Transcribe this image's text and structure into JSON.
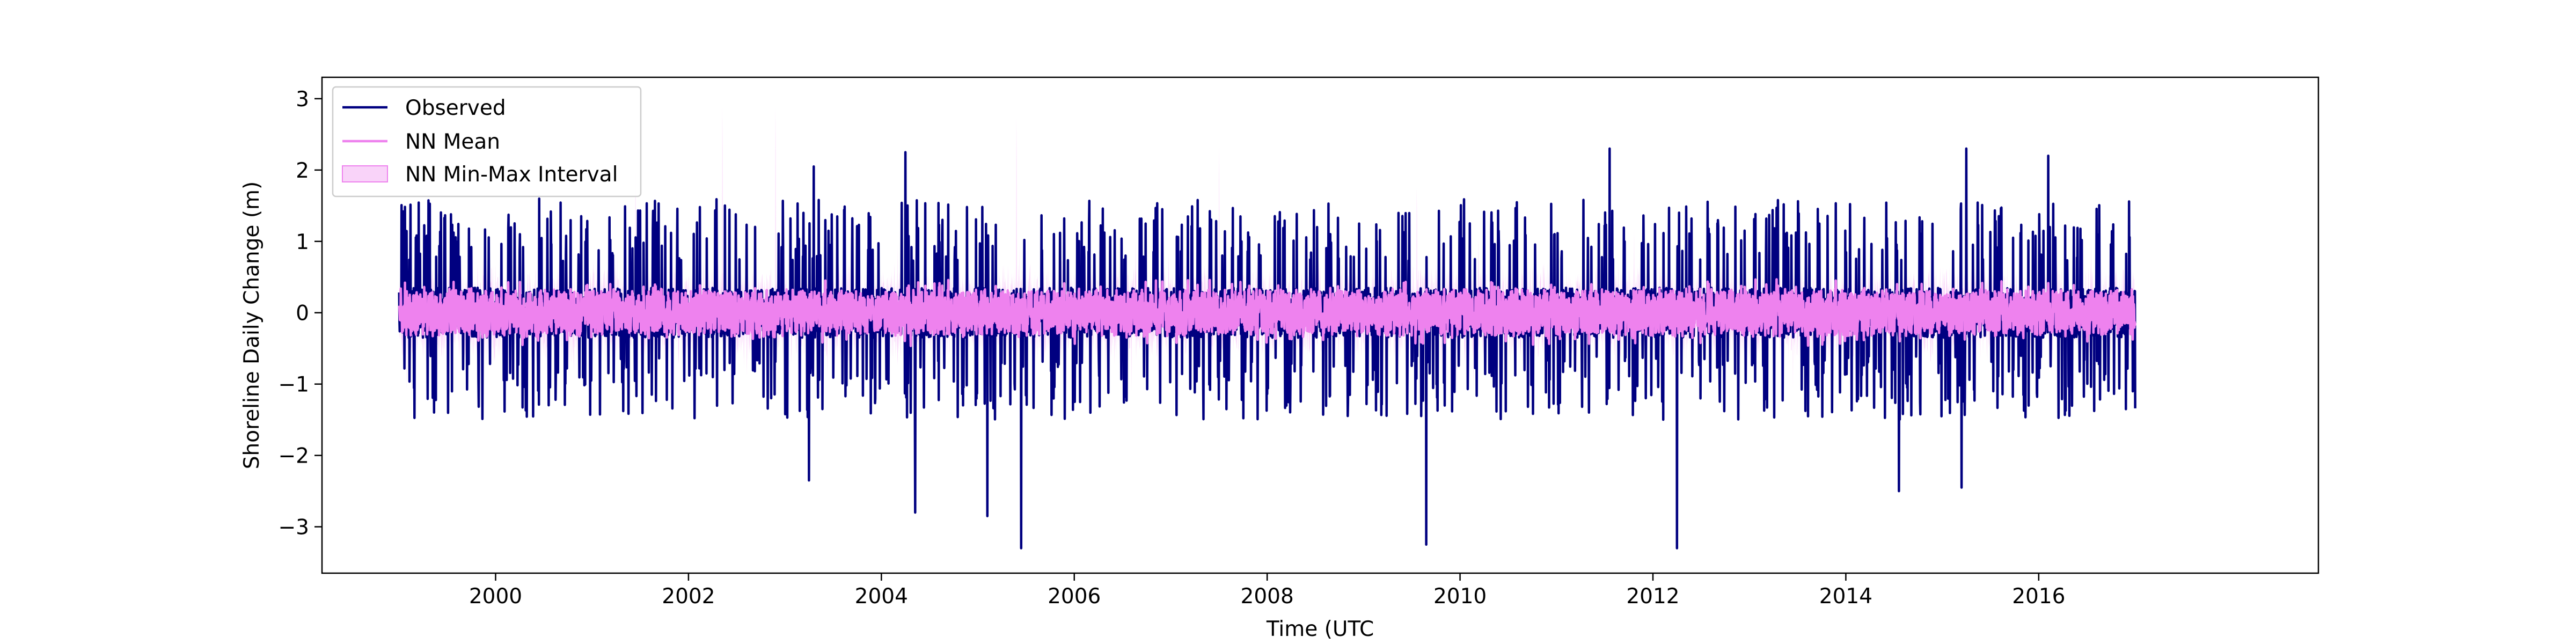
{
  "chart_data": {
    "type": "line",
    "title": "",
    "xlabel": "Time (UTC",
    "ylabel": "Shoreline Daily Change (m)",
    "xlim": [
      1998.2,
      2018.9
    ],
    "ylim": [
      -3.65,
      3.3
    ],
    "xticks": [
      2000,
      2002,
      2004,
      2006,
      2008,
      2010,
      2012,
      2014,
      2016
    ],
    "xtick_labels": [
      "2000",
      "2002",
      "2004",
      "2006",
      "2008",
      "2010",
      "2012",
      "2014",
      "2016"
    ],
    "yticks": [
      3,
      2,
      1,
      0,
      -1,
      -2,
      -3
    ],
    "ytick_labels": [
      "3",
      "2",
      "1",
      "0",
      "−1",
      "−2",
      "−3"
    ],
    "grid": false,
    "legend_position": "top-left",
    "date_range": [
      "1999-01-01",
      "2016-12-31"
    ],
    "series": [
      {
        "name": "Observed",
        "kind": "line",
        "color": "#000080"
      },
      {
        "name": "NN Mean",
        "kind": "line",
        "color": "#ee82ee"
      },
      {
        "name": "NN Min-Max Interval",
        "kind": "band",
        "color": "#ee82ee"
      }
    ],
    "notable_points": [
      {
        "x": 2012.25,
        "y": -3.3,
        "series": "Observed"
      },
      {
        "x": 2005.45,
        "y": -3.3,
        "series": "Observed"
      },
      {
        "x": 2009.65,
        "y": -3.25,
        "series": "Observed"
      },
      {
        "x": 2005.1,
        "y": -2.85,
        "series": "Observed"
      },
      {
        "x": 2004.35,
        "y": -2.8,
        "series": "Observed"
      },
      {
        "x": 2014.55,
        "y": -2.5,
        "series": "Observed"
      },
      {
        "x": 2015.2,
        "y": -2.45,
        "series": "Observed"
      },
      {
        "x": 2003.25,
        "y": -2.35,
        "series": "Observed"
      },
      {
        "x": 2011.55,
        "y": 2.3,
        "series": "Observed"
      },
      {
        "x": 2015.25,
        "y": 2.3,
        "series": "Observed"
      },
      {
        "x": 2004.25,
        "y": 2.25,
        "series": "Observed"
      },
      {
        "x": 2016.1,
        "y": 2.2,
        "series": "Observed"
      },
      {
        "x": 2003.3,
        "y": 2.05,
        "series": "Observed"
      },
      {
        "x": 2002.35,
        "y": 2.9,
        "series": "NN Min-Max Interval"
      },
      {
        "x": 2002.9,
        "y": 2.9,
        "series": "NN Min-Max Interval"
      },
      {
        "x": 2005.4,
        "y": 2.75,
        "series": "NN Min-Max Interval"
      },
      {
        "x": 2007.5,
        "y": 2.35,
        "series": "NN Min-Max Interval"
      },
      {
        "x": 2001.45,
        "y": 2.1,
        "series": "NN Min-Max Interval"
      },
      {
        "x": 2009.55,
        "y": 1.75,
        "series": "NN Min-Max Interval"
      }
    ],
    "typical_ranges": {
      "Observed": [
        -1.5,
        1.6
      ],
      "NN Mean": [
        -0.3,
        0.3
      ],
      "NN Min-Max Interval": [
        -1.0,
        0.9
      ]
    }
  }
}
